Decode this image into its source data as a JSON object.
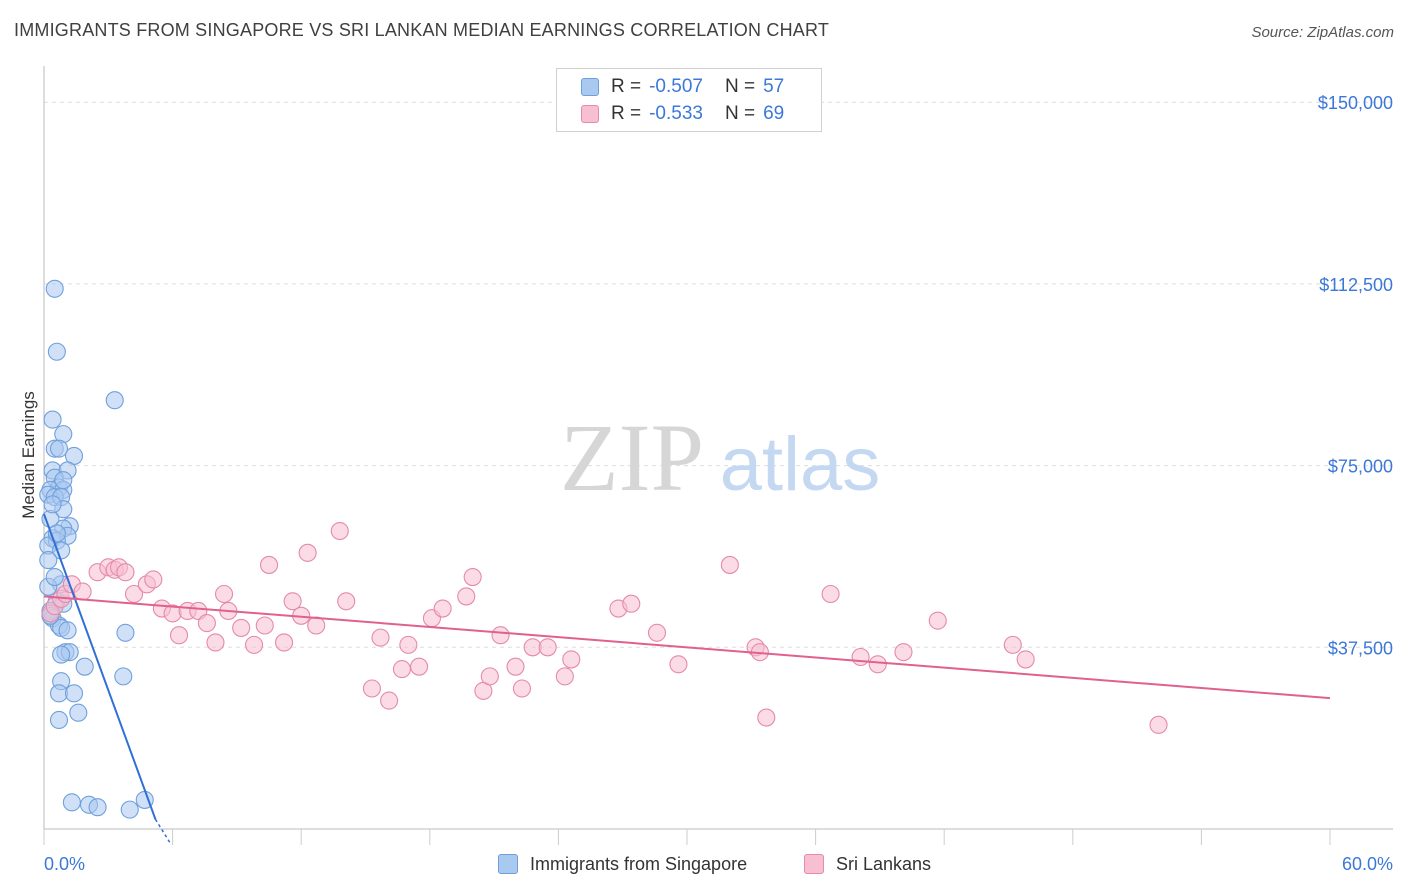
{
  "title": "IMMIGRANTS FROM SINGAPORE VS SRI LANKAN MEDIAN EARNINGS CORRELATION CHART",
  "source": "Source: ZipAtlas.com",
  "watermark": {
    "zip": "ZIP",
    "atlas": "atlas"
  },
  "legend": {
    "rows": [
      {
        "r_label": "R =",
        "r_value": "-0.507",
        "n_label": "N =",
        "n_value": "57",
        "color": "#a9c9f0",
        "border": "#6fa0dc"
      },
      {
        "r_label": "R =",
        "r_value": "-0.533",
        "n_label": "N =",
        "n_value": "69",
        "color": "#f7bfd1",
        "border": "#e58aa9"
      }
    ]
  },
  "bottom_legend": {
    "items": [
      {
        "label": "Immigrants from Singapore",
        "color": "#a9c9f0",
        "border": "#6fa0dc"
      },
      {
        "label": "Sri Lankans",
        "color": "#f7bfd1",
        "border": "#e58aa9"
      }
    ]
  },
  "chart_data": {
    "type": "scatter",
    "title": "IMMIGRANTS FROM SINGAPORE VS SRI LANKAN MEDIAN EARNINGS CORRELATION CHART",
    "xlabel": "",
    "ylabel": "Median Earnings",
    "xlim": [
      0,
      60
    ],
    "ylim": [
      0,
      155000
    ],
    "x_tick_labels": [
      "0.0%",
      "60.0%"
    ],
    "y_ticks": [
      37500,
      75000,
      112500,
      150000
    ],
    "y_tick_labels": [
      "$37,500",
      "$75,000",
      "$112,500",
      "$150,000"
    ],
    "series": [
      {
        "name": "Immigrants from Singapore",
        "color": "#6fa0dc",
        "fill": "#a9c9f0",
        "trend": {
          "x": [
            0,
            5.2
          ],
          "y": [
            65000,
            2000
          ],
          "color": "#2f6fd6",
          "dash_to": [
            5.9,
            -3000
          ]
        },
        "points": [
          [
            0.5,
            111500
          ],
          [
            0.6,
            98500
          ],
          [
            3.3,
            88500
          ],
          [
            0.4,
            84500
          ],
          [
            0.9,
            81500
          ],
          [
            0.5,
            78500
          ],
          [
            0.7,
            78500
          ],
          [
            1.4,
            77000
          ],
          [
            0.4,
            74000
          ],
          [
            1.1,
            74000
          ],
          [
            0.5,
            72500
          ],
          [
            0.7,
            70500
          ],
          [
            0.3,
            70000
          ],
          [
            0.9,
            70000
          ],
          [
            0.2,
            69000
          ],
          [
            0.5,
            68500
          ],
          [
            0.8,
            68500
          ],
          [
            0.9,
            66000
          ],
          [
            0.3,
            64000
          ],
          [
            1.2,
            62500
          ],
          [
            0.9,
            62000
          ],
          [
            1.1,
            60500
          ],
          [
            0.4,
            60000
          ],
          [
            0.6,
            59500
          ],
          [
            0.2,
            58500
          ],
          [
            0.8,
            57500
          ],
          [
            0.2,
            55500
          ],
          [
            0.8,
            50500
          ],
          [
            0.2,
            50000
          ],
          [
            0.6,
            47000
          ],
          [
            0.9,
            46500
          ],
          [
            0.3,
            45000
          ],
          [
            0.4,
            43500
          ],
          [
            0.7,
            42000
          ],
          [
            0.8,
            41500
          ],
          [
            1.1,
            41000
          ],
          [
            3.8,
            40500
          ],
          [
            1.0,
            36500
          ],
          [
            1.2,
            36500
          ],
          [
            0.8,
            36000
          ],
          [
            1.9,
            33500
          ],
          [
            3.7,
            31500
          ],
          [
            0.8,
            30500
          ],
          [
            0.7,
            28000
          ],
          [
            1.4,
            28000
          ],
          [
            1.6,
            24000
          ],
          [
            0.7,
            22500
          ],
          [
            1.3,
            5500
          ],
          [
            2.1,
            5000
          ],
          [
            2.5,
            4500
          ],
          [
            4.0,
            4000
          ],
          [
            4.7,
            6000
          ],
          [
            0.3,
            44000
          ],
          [
            0.5,
            52000
          ],
          [
            0.6,
            61000
          ],
          [
            0.4,
            67000
          ],
          [
            0.9,
            72000
          ]
        ]
      },
      {
        "name": "Sri Lankans",
        "color": "#e58aa9",
        "fill": "#f7bfd1",
        "trend": {
          "x": [
            0,
            60
          ],
          "y": [
            48000,
            27000
          ],
          "color": "#e06090"
        },
        "points": [
          [
            0.3,
            44500
          ],
          [
            0.5,
            46000
          ],
          [
            0.8,
            47500
          ],
          [
            1.0,
            48500
          ],
          [
            1.3,
            50500
          ],
          [
            1.8,
            49000
          ],
          [
            2.5,
            53000
          ],
          [
            3.0,
            54000
          ],
          [
            3.3,
            53500
          ],
          [
            3.5,
            54000
          ],
          [
            3.8,
            53000
          ],
          [
            4.2,
            48500
          ],
          [
            4.8,
            50500
          ],
          [
            5.1,
            51500
          ],
          [
            5.5,
            45500
          ],
          [
            6.0,
            44500
          ],
          [
            6.3,
            40000
          ],
          [
            6.7,
            45000
          ],
          [
            7.2,
            45000
          ],
          [
            7.6,
            42500
          ],
          [
            8.0,
            38500
          ],
          [
            8.4,
            48500
          ],
          [
            8.6,
            45000
          ],
          [
            9.2,
            41500
          ],
          [
            9.8,
            38000
          ],
          [
            10.3,
            42000
          ],
          [
            10.5,
            54500
          ],
          [
            11.2,
            38500
          ],
          [
            11.6,
            47000
          ],
          [
            12.0,
            44000
          ],
          [
            12.3,
            57000
          ],
          [
            12.7,
            42000
          ],
          [
            13.8,
            61500
          ],
          [
            14.1,
            47000
          ],
          [
            15.3,
            29000
          ],
          [
            15.7,
            39500
          ],
          [
            16.1,
            26500
          ],
          [
            16.7,
            33000
          ],
          [
            17.0,
            38000
          ],
          [
            17.5,
            33500
          ],
          [
            18.1,
            43500
          ],
          [
            18.6,
            45500
          ],
          [
            19.7,
            48000
          ],
          [
            20.0,
            52000
          ],
          [
            20.5,
            28500
          ],
          [
            20.8,
            31500
          ],
          [
            21.3,
            40000
          ],
          [
            22.0,
            33500
          ],
          [
            22.3,
            29000
          ],
          [
            22.8,
            37500
          ],
          [
            23.5,
            37500
          ],
          [
            24.3,
            31500
          ],
          [
            24.6,
            35000
          ],
          [
            26.8,
            45500
          ],
          [
            27.4,
            46500
          ],
          [
            28.6,
            40500
          ],
          [
            29.6,
            34000
          ],
          [
            32.0,
            54500
          ],
          [
            33.2,
            37500
          ],
          [
            33.4,
            36500
          ],
          [
            33.7,
            23000
          ],
          [
            36.7,
            48500
          ],
          [
            38.1,
            35500
          ],
          [
            38.9,
            34000
          ],
          [
            40.1,
            36500
          ],
          [
            41.7,
            43000
          ],
          [
            45.2,
            38000
          ],
          [
            45.8,
            35000
          ],
          [
            52.0,
            21500
          ]
        ]
      }
    ]
  }
}
